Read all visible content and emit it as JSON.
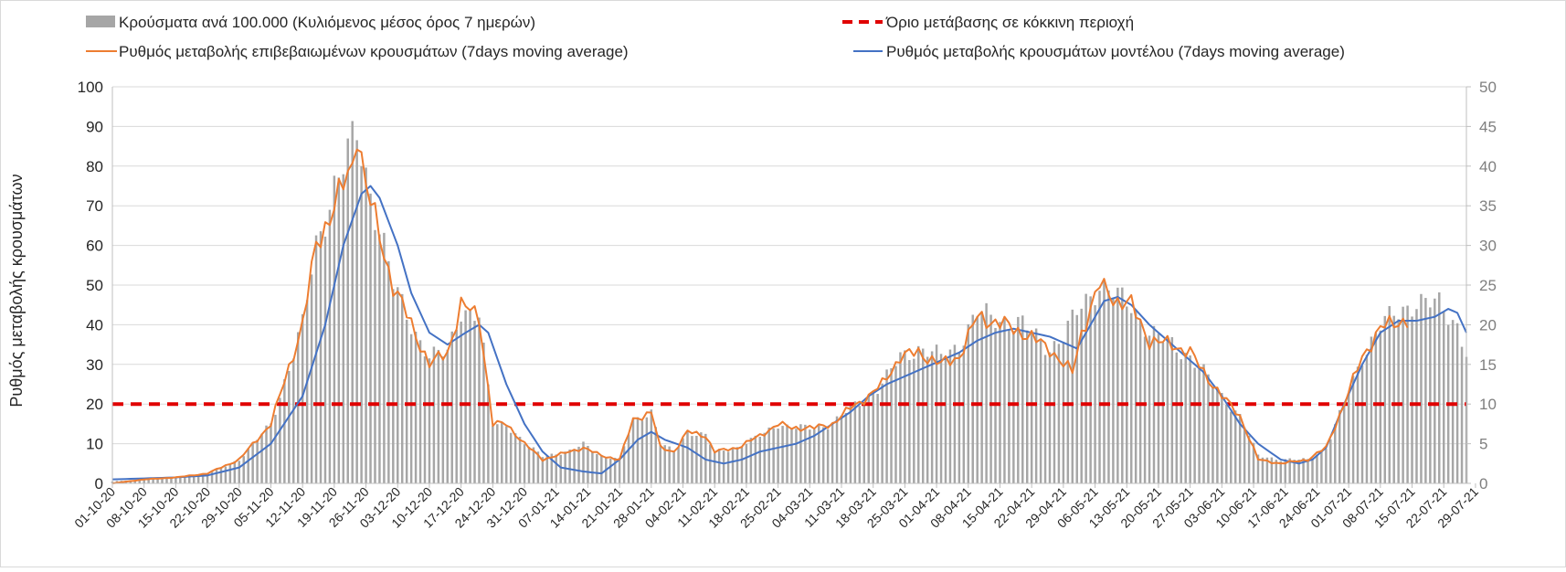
{
  "chart_data": {
    "type": "bar+line",
    "y_left_label": "Ρυθμός μεταβολής κρουσμάτων",
    "y_left_ticks": [
      0,
      10,
      20,
      30,
      40,
      50,
      60,
      70,
      80,
      90,
      100
    ],
    "y_right_ticks": [
      0,
      5,
      10,
      15,
      20,
      25,
      30,
      35,
      40,
      45,
      50
    ],
    "ylim_left": [
      0,
      100
    ],
    "ylim_right": [
      0,
      50
    ],
    "grid": "horizontal",
    "legend_position": "top",
    "legend": [
      {
        "key": "bars",
        "label": "Κρούσματα ανά 100.000 (Κυλιόμενος μέσος όρος 7 ημερών)",
        "symbol": "bar",
        "color": "#a6a6a6"
      },
      {
        "key": "threshold",
        "label": "Όριο μετάβασης σε κόκκινη περιοχή",
        "symbol": "dash",
        "color": "#e00000"
      },
      {
        "key": "confirmed",
        "label": "Ρυθμός μεταβολής επιβεβαιωμένων κρουσμάτων (7days moving average)",
        "symbol": "line",
        "color": "#ed7d31"
      },
      {
        "key": "model",
        "label": "Ρυθμός μεταβολής κρουσμάτων μοντέλου (7days moving average)",
        "symbol": "line",
        "color": "#4472c4"
      }
    ],
    "x_tick_labels": [
      "01-10-20",
      "08-10-20",
      "15-10-20",
      "22-10-20",
      "29-10-20",
      "05-11-20",
      "12-11-20",
      "19-11-20",
      "26-11-20",
      "03-12-20",
      "10-12-20",
      "17-12-20",
      "24-12-20",
      "31-12-20",
      "07-01-21",
      "14-01-21",
      "21-01-21",
      "28-01-21",
      "04-02-21",
      "11-02-21",
      "18-02-21",
      "25-02-21",
      "04-03-21",
      "11-03-21",
      "18-03-21",
      "25-03-21",
      "01-04-21",
      "08-04-21",
      "15-04-21",
      "22-04-21",
      "29-04-21",
      "06-05-21",
      "13-05-21",
      "20-05-21",
      "27-05-21",
      "03-06-21",
      "10-06-21",
      "17-06-21",
      "24-06-21",
      "01-07-21",
      "08-07-21",
      "15-07-21",
      "22-07-21",
      "29-07-21"
    ],
    "threshold_value": 20,
    "bars_series": {
      "name": "Κρούσματα ανά 100.000 (Κυλιόμενος μέσος όρος 7 ημερών)",
      "axis": "left",
      "keyframes": [
        [
          0,
          0.5
        ],
        [
          7,
          1
        ],
        [
          14,
          1.5
        ],
        [
          21,
          2.5
        ],
        [
          28,
          6
        ],
        [
          35,
          15
        ],
        [
          42,
          40
        ],
        [
          45,
          60
        ],
        [
          49,
          75
        ],
        [
          54,
          88
        ],
        [
          56,
          78
        ],
        [
          60,
          60
        ],
        [
          62,
          50
        ],
        [
          66,
          40
        ],
        [
          70,
          32
        ],
        [
          74,
          33
        ],
        [
          77,
          44
        ],
        [
          81,
          42
        ],
        [
          84,
          15
        ],
        [
          87,
          15
        ],
        [
          91,
          10
        ],
        [
          95,
          7
        ],
        [
          101,
          8
        ],
        [
          104,
          10
        ],
        [
          108,
          7
        ],
        [
          112,
          6
        ],
        [
          115,
          16
        ],
        [
          119,
          18
        ],
        [
          121,
          10
        ],
        [
          124,
          8
        ],
        [
          127,
          13
        ],
        [
          131,
          12
        ],
        [
          133,
          8
        ],
        [
          138,
          9
        ],
        [
          143,
          12
        ],
        [
          147,
          15
        ],
        [
          150,
          14
        ],
        [
          155,
          14
        ],
        [
          159,
          15
        ],
        [
          163,
          19
        ],
        [
          167,
          22
        ],
        [
          170,
          25
        ],
        [
          174,
          32
        ],
        [
          178,
          34
        ],
        [
          183,
          32
        ],
        [
          187,
          35
        ],
        [
          191,
          43
        ],
        [
          197,
          41
        ],
        [
          201,
          40
        ],
        [
          207,
          34
        ],
        [
          210,
          37
        ],
        [
          214,
          45
        ],
        [
          218,
          50
        ],
        [
          222,
          47
        ],
        [
          225,
          45
        ],
        [
          229,
          38
        ],
        [
          234,
          35
        ],
        [
          238,
          32
        ],
        [
          241,
          28
        ],
        [
          245,
          22
        ],
        [
          249,
          17
        ],
        [
          253,
          7
        ],
        [
          258,
          6
        ],
        [
          264,
          6
        ],
        [
          268,
          9
        ],
        [
          272,
          20
        ],
        [
          276,
          32
        ],
        [
          280,
          40
        ],
        [
          284,
          43
        ],
        [
          288,
          46
        ],
        [
          293,
          45
        ],
        [
          297,
          40
        ],
        [
          299,
          33
        ]
      ]
    },
    "confirmed_series": {
      "name": "Ρυθμός μεταβολής επιβεβαιωμένων κρουσμάτων (7days moving average)",
      "axis": "left",
      "keyframes": [
        [
          0,
          0
        ],
        [
          7,
          1
        ],
        [
          14,
          1.5
        ],
        [
          21,
          2.5
        ],
        [
          28,
          6
        ],
        [
          35,
          15
        ],
        [
          42,
          40
        ],
        [
          45,
          60
        ],
        [
          49,
          70
        ],
        [
          53,
          80
        ],
        [
          54,
          90
        ],
        [
          56,
          75
        ],
        [
          60,
          58
        ],
        [
          62,
          50
        ],
        [
          66,
          40
        ],
        [
          70,
          30
        ],
        [
          74,
          33
        ],
        [
          77,
          45
        ],
        [
          81,
          42
        ],
        [
          84,
          15
        ],
        [
          87,
          15
        ],
        [
          91,
          10
        ],
        [
          95,
          6
        ],
        [
          101,
          8
        ],
        [
          104,
          9
        ],
        [
          108,
          7
        ],
        [
          112,
          6
        ],
        [
          115,
          16
        ],
        [
          119,
          18
        ],
        [
          121,
          9
        ],
        [
          124,
          8
        ],
        [
          127,
          13
        ],
        [
          131,
          12
        ],
        [
          133,
          8
        ],
        [
          138,
          9
        ],
        [
          143,
          12
        ],
        [
          147,
          15
        ],
        [
          150,
          14
        ],
        [
          155,
          14
        ],
        [
          159,
          15
        ],
        [
          163,
          19
        ],
        [
          167,
          22
        ],
        [
          170,
          25
        ],
        [
          174,
          32
        ],
        [
          178,
          33
        ],
        [
          183,
          30
        ],
        [
          187,
          32
        ],
        [
          191,
          42
        ],
        [
          197,
          40
        ],
        [
          201,
          38
        ],
        [
          207,
          34
        ],
        [
          210,
          30
        ],
        [
          212,
          28
        ],
        [
          214,
          38
        ],
        [
          218,
          50
        ],
        [
          222,
          46
        ],
        [
          225,
          45
        ],
        [
          229,
          36
        ],
        [
          234,
          35
        ],
        [
          238,
          33
        ],
        [
          241,
          28
        ],
        [
          245,
          22
        ],
        [
          249,
          17
        ],
        [
          253,
          6
        ],
        [
          258,
          5
        ],
        [
          264,
          6
        ],
        [
          268,
          9
        ],
        [
          272,
          20
        ],
        [
          276,
          32
        ],
        [
          280,
          39
        ],
        [
          284,
          41
        ],
        [
          286,
          41
        ]
      ]
    },
    "model_series": {
      "name": "Ρυθμός μεταβολής κρουσμάτων μοντέλου (7days moving average)",
      "axis": "left",
      "keyframes": [
        [
          0,
          1
        ],
        [
          14,
          1.5
        ],
        [
          21,
          2
        ],
        [
          28,
          4
        ],
        [
          35,
          10
        ],
        [
          42,
          22
        ],
        [
          47,
          40
        ],
        [
          51,
          60
        ],
        [
          55,
          73
        ],
        [
          57,
          75
        ],
        [
          59,
          72
        ],
        [
          63,
          60
        ],
        [
          66,
          48
        ],
        [
          70,
          38
        ],
        [
          74,
          35
        ],
        [
          78,
          38
        ],
        [
          81,
          40
        ],
        [
          83,
          38
        ],
        [
          87,
          25
        ],
        [
          91,
          15
        ],
        [
          95,
          8
        ],
        [
          99,
          4
        ],
        [
          104,
          3
        ],
        [
          108,
          2.5
        ],
        [
          112,
          6
        ],
        [
          116,
          11
        ],
        [
          119,
          13
        ],
        [
          122,
          11
        ],
        [
          127,
          9
        ],
        [
          131,
          6
        ],
        [
          135,
          5
        ],
        [
          139,
          6
        ],
        [
          143,
          8
        ],
        [
          147,
          9
        ],
        [
          151,
          10
        ],
        [
          155,
          12
        ],
        [
          159,
          15
        ],
        [
          163,
          18
        ],
        [
          167,
          22
        ],
        [
          171,
          25
        ],
        [
          175,
          27
        ],
        [
          179,
          29
        ],
        [
          183,
          31
        ],
        [
          187,
          33
        ],
        [
          191,
          36
        ],
        [
          195,
          38
        ],
        [
          199,
          39
        ],
        [
          203,
          38
        ],
        [
          207,
          37
        ],
        [
          211,
          35
        ],
        [
          213,
          34
        ],
        [
          216,
          40
        ],
        [
          219,
          46
        ],
        [
          222,
          47
        ],
        [
          225,
          45
        ],
        [
          229,
          40
        ],
        [
          234,
          35
        ],
        [
          238,
          31
        ],
        [
          241,
          28
        ],
        [
          245,
          22
        ],
        [
          249,
          15
        ],
        [
          253,
          10
        ],
        [
          258,
          6
        ],
        [
          262,
          5
        ],
        [
          265,
          6
        ],
        [
          268,
          9
        ],
        [
          272,
          20
        ],
        [
          276,
          30
        ],
        [
          280,
          38
        ],
        [
          284,
          41
        ],
        [
          288,
          41
        ],
        [
          292,
          42
        ],
        [
          295,
          44
        ],
        [
          297,
          43
        ],
        [
          299,
          38
        ]
      ]
    }
  }
}
